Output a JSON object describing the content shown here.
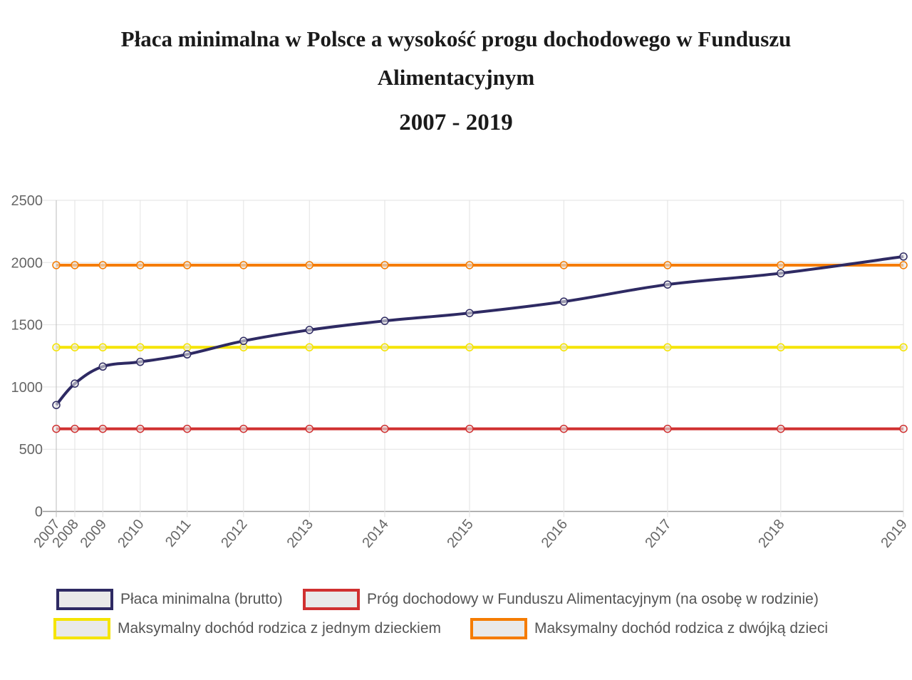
{
  "title": "Płaca minimalna w Polsce a wysokość progu dochodowego w Funduszu Alimentacyjnym",
  "subtitle": "2007 - 2019",
  "chart_data": {
    "type": "line",
    "title": "Płaca minimalna w Polsce a wysokość progu dochodowego w Funduszu Alimentacyjnym",
    "subtitle": "2007 - 2019",
    "categories": [
      "2007",
      "2008",
      "2009",
      "2010",
      "2011",
      "2012",
      "2013",
      "2014",
      "2015",
      "2016",
      "2017",
      "2018",
      "2019"
    ],
    "ylim": [
      0,
      2500
    ],
    "yticks": [
      "0",
      "500",
      "1000",
      "1500",
      "2000",
      "2500"
    ],
    "grid": true,
    "legend_position": "bottom",
    "series": [
      {
        "name": "Płaca minimalna (brutto)",
        "color": "#2e2a63",
        "smooth": true,
        "values": [
          855,
          1027,
          1164,
          1202,
          1262,
          1370,
          1458,
          1531,
          1594,
          1686,
          1823,
          1914,
          2048
        ]
      },
      {
        "name": "Próg dochodowy w Funduszu Alimentacyjnym (na osobę w rodzinie)",
        "color": "#d03030",
        "values": [
          664,
          664,
          664,
          664,
          664,
          664,
          664,
          664,
          664,
          664,
          664,
          664,
          664
        ]
      },
      {
        "name": "Maksymalny dochód rodzica z jednym dzieckiem",
        "color": "#f5e400",
        "values": [
          1319,
          1319,
          1319,
          1319,
          1319,
          1319,
          1319,
          1319,
          1319,
          1319,
          1319,
          1319,
          1319
        ]
      },
      {
        "name": "Maksymalny dochód rodzica z dwójką dzieci",
        "color": "#f57c00",
        "values": [
          1979,
          1979,
          1979,
          1979,
          1979,
          1979,
          1979,
          1979,
          1979,
          1979,
          1979,
          1979,
          1979
        ]
      }
    ]
  }
}
